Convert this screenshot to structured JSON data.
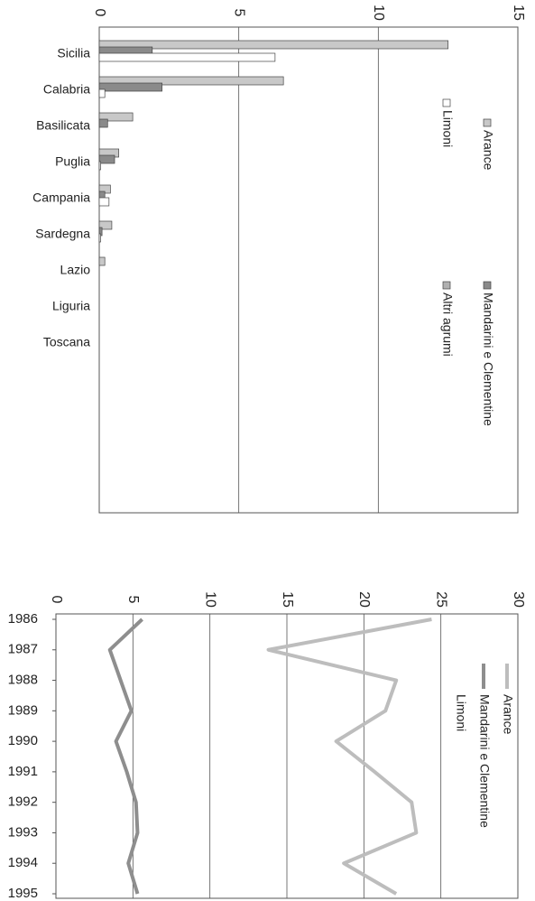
{
  "chart_data": [
    {
      "type": "bar",
      "categories": [
        "Sicilia",
        "Calabria",
        "Basilicata",
        "Puglia",
        "Campania",
        "Sardegna",
        "Lazio",
        "Liguria",
        "Toscana"
      ],
      "series": [
        {
          "name": "Arance",
          "color": "#c8c8c8",
          "values": [
            12.5,
            6.6,
            1.2,
            0.7,
            0.4,
            0.45,
            0.2,
            0,
            0
          ]
        },
        {
          "name": "Mandarini e Clementine",
          "color": "#8a8a8a",
          "values": [
            1.9,
            2.25,
            0.3,
            0.55,
            0.2,
            0.1,
            0,
            0,
            0
          ]
        },
        {
          "name": "Limoni",
          "color": "#ffffff",
          "values": [
            6.3,
            0.2,
            0,
            0.05,
            0.35,
            0.05,
            0,
            0,
            0
          ]
        },
        {
          "name": "Altri agrumi",
          "color": "#b0b0b0",
          "values": [
            0,
            0,
            0,
            0,
            0,
            0,
            0,
            0,
            0
          ]
        }
      ],
      "xlim": [
        0,
        15
      ],
      "xticks": [
        0,
        5,
        10,
        15
      ],
      "grid": true
    },
    {
      "type": "line",
      "categories": [
        "1986",
        "1987",
        "1988",
        "1989",
        "1990",
        "1991",
        "1992",
        "1993",
        "1994",
        "1995"
      ],
      "series": [
        {
          "name": "Arance",
          "color": "#bdbdbd",
          "values": [
            24.4,
            13.8,
            22.1,
            21.4,
            18.2,
            20.7,
            23.1,
            23.4,
            18.7,
            22.1
          ]
        },
        {
          "name": "Mandarini e Clementine",
          "color": "#8e8e8e",
          "values": [
            5.6,
            3.5,
            4.2,
            4.9,
            3.9,
            4.6,
            5.2,
            5.3,
            4.7,
            5.3
          ]
        },
        {
          "name": "Limoni",
          "color": "#ffffff",
          "values": [
            null,
            null,
            null,
            null,
            null,
            null,
            null,
            null,
            null,
            null
          ]
        }
      ],
      "xlim": [
        0,
        30
      ],
      "xticks": [
        0,
        5,
        10,
        15,
        20,
        25,
        30
      ],
      "grid": true
    }
  ]
}
